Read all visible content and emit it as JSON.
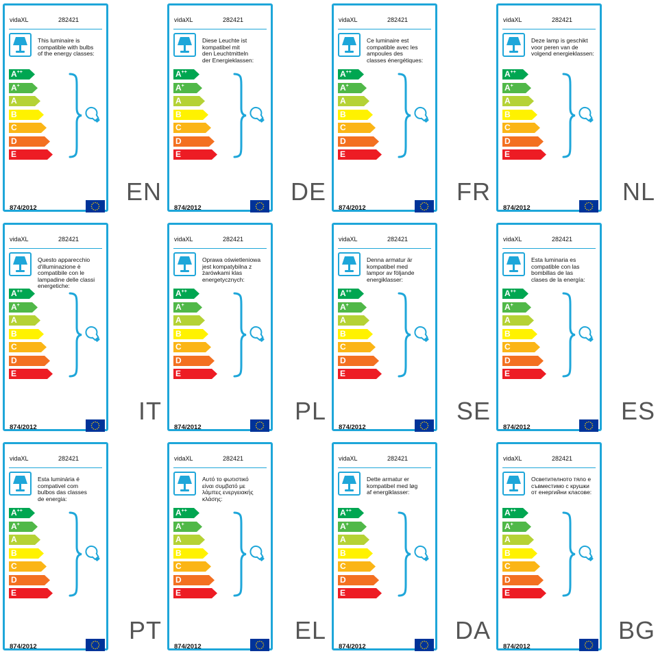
{
  "brand": "vidaXL",
  "product_code": "282421",
  "regulation": "874/2012",
  "energy_classes": [
    {
      "letter": "A",
      "sup": "++",
      "color": "#00a651"
    },
    {
      "letter": "A",
      "sup": "+",
      "color": "#50b848"
    },
    {
      "letter": "A",
      "sup": "",
      "color": "#b5d235"
    },
    {
      "letter": "B",
      "sup": "",
      "color": "#fff200"
    },
    {
      "letter": "C",
      "sup": "",
      "color": "#fbb516"
    },
    {
      "letter": "D",
      "sup": "",
      "color": "#f37021"
    },
    {
      "letter": "E",
      "sup": "",
      "color": "#ed1c24"
    }
  ],
  "colors": {
    "frame": "#1ea6d9",
    "lamp_icon": "#1ea6d9",
    "bulb_icon": "#1ea6d9",
    "eu_flag_blue": "#003399",
    "eu_flag_stars": "#ffcc00",
    "language_code": "#555555"
  },
  "icons": {
    "lamp": "table-lamp-icon",
    "bulb": "light-bulb-icon",
    "brace": "curly-brace-icon",
    "flag": "eu-flag-icon"
  },
  "labels": [
    {
      "lang": "EN",
      "text": [
        "This luminaire is",
        "compatible with bulbs",
        "of the energy classes:"
      ]
    },
    {
      "lang": "DE",
      "text": [
        "Diese Leuchte ist",
        "kompatibel mit",
        "den Leuchtmitteln",
        "der Energieklassen:"
      ]
    },
    {
      "lang": "FR",
      "text": [
        "Ce luminaire est",
        "compatible avec les",
        "ampoules des",
        "classes énergétiques:"
      ]
    },
    {
      "lang": "NL",
      "text": [
        "Deze lamp is geschikt",
        "voor peren van de",
        "volgend energieklassen:"
      ]
    },
    {
      "lang": "IT",
      "text": [
        "Questo apparecchio",
        "d'illuminazione è",
        "compatibile con le",
        "lampadine delle classi",
        "energetiche:"
      ]
    },
    {
      "lang": "PL",
      "text": [
        "Oprawa oświetleniowa",
        "jest kompatybilna z",
        "żarówkami klas",
        "energetycznych:"
      ]
    },
    {
      "lang": "SE",
      "text": [
        "Denna armatur är",
        "kompatibel med",
        "lampor av följande",
        "energiklasser:"
      ]
    },
    {
      "lang": "ES",
      "text": [
        "Esta luminaria es",
        "compatible con las",
        "bombillas de las",
        "clases de la energía:"
      ]
    },
    {
      "lang": "PT",
      "text": [
        "Esta luminária é",
        "compativel com",
        "bulbos das classes",
        "de energia:"
      ]
    },
    {
      "lang": "EL",
      "text": [
        "Αυτό το φωτιστικό",
        "είναι συμβατό με",
        "λάμπες ενεργειακής",
        "κλάσης:"
      ]
    },
    {
      "lang": "DA",
      "text": [
        "Dette armatur er",
        "kompatibel med løg",
        "af energiklasser:"
      ]
    },
    {
      "lang": "BG",
      "text": [
        "Осветителното тяло е",
        "съвместимо с крушки",
        "от енергийни класове:"
      ]
    }
  ]
}
